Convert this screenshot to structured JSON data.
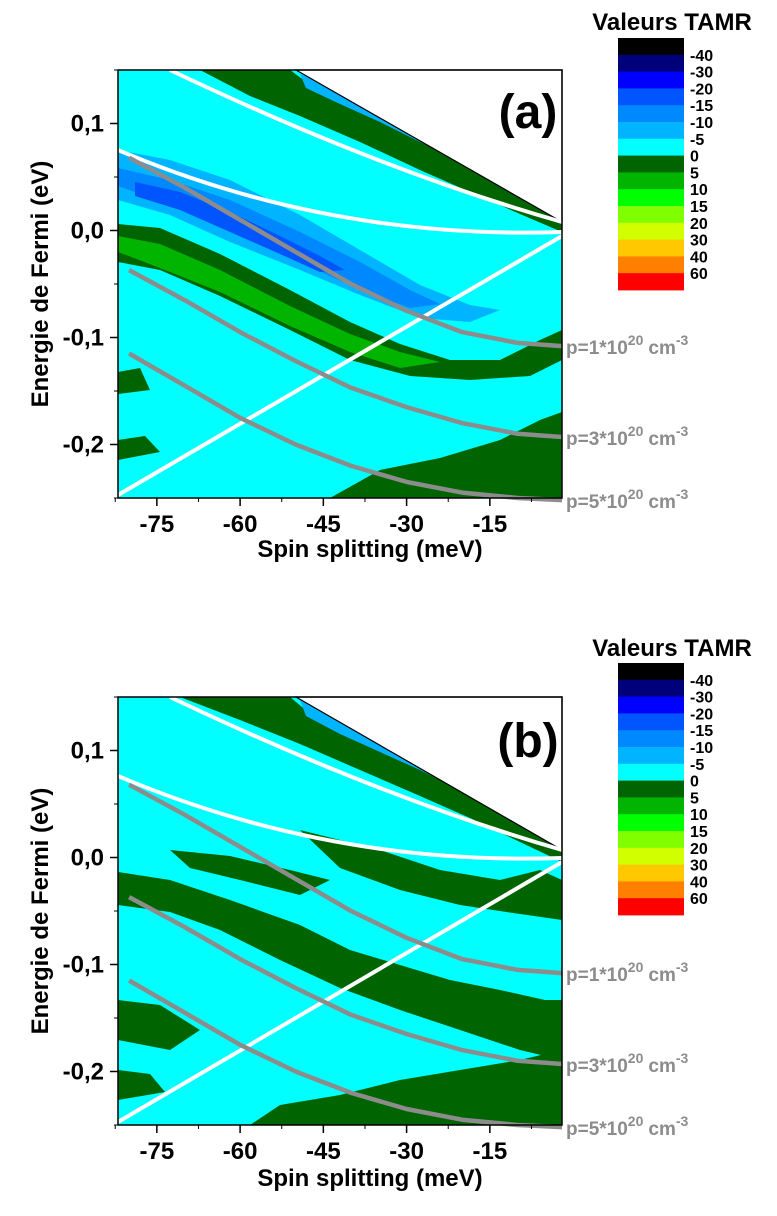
{
  "chart_data": [
    {
      "type": "heatmap",
      "panel_label": "(a)",
      "xlabel": "Spin splitting (meV)",
      "ylabel": "Energie de Fermi (eV)",
      "xlim": [
        -82,
        -2
      ],
      "ylim": [
        -0.25,
        0.15
      ],
      "x_ticks": [
        "-75",
        "-60",
        "-45",
        "-30",
        "-15"
      ],
      "y_ticks": [
        "0,1",
        "0,0",
        "-0,1",
        "-0,2"
      ],
      "colorbar": {
        "title": "Valeurs TAMR",
        "levels": [
          "-40",
          "-30",
          "-20",
          "-15",
          "-10",
          "-5",
          "0",
          "5",
          "10",
          "15",
          "20",
          "30",
          "40",
          "60"
        ],
        "colors": [
          "#000000",
          "#00007a",
          "#0000ff",
          "#0055ff",
          "#0088ff",
          "#00b4ff",
          "#00ffff",
          "#006400",
          "#00b400",
          "#00ff00",
          "#80ff00",
          "#d2ff00",
          "#ffc800",
          "#ff7f00",
          "#ff0000"
        ]
      },
      "density_curves": [
        {
          "label": "p=1*10",
          "exp": "20",
          "unit": "cm",
          "uexp": "-3",
          "x": [
            -80,
            -70,
            -60,
            -50,
            -40,
            -30,
            -20,
            -10,
            -2
          ],
          "y": [
            0.068,
            0.04,
            0.01,
            -0.02,
            -0.05,
            -0.075,
            -0.095,
            -0.105,
            -0.108
          ]
        },
        {
          "label": "p=3*10",
          "exp": "20",
          "unit": "cm",
          "uexp": "-3",
          "x": [
            -80,
            -70,
            -60,
            -50,
            -40,
            -30,
            -20,
            -10,
            -2
          ],
          "y": [
            -0.037,
            -0.065,
            -0.095,
            -0.122,
            -0.147,
            -0.165,
            -0.18,
            -0.19,
            -0.193
          ]
        },
        {
          "label": "p=5*10",
          "exp": "20",
          "unit": "cm",
          "uexp": "-3",
          "x": [
            -80,
            -70,
            -60,
            -50,
            -40,
            -30,
            -20,
            -10,
            -2
          ],
          "y": [
            -0.115,
            -0.145,
            -0.175,
            -0.2,
            -0.22,
            -0.235,
            -0.245,
            -0.25,
            -0.252
          ]
        }
      ]
    },
    {
      "type": "heatmap",
      "panel_label": "(b)",
      "xlabel": "Spin splitting (meV)",
      "ylabel": "Energie de Fermi (eV)",
      "xlim": [
        -82,
        -2
      ],
      "ylim": [
        -0.25,
        0.15
      ],
      "x_ticks": [
        "-75",
        "-60",
        "-45",
        "-30",
        "-15"
      ],
      "y_ticks": [
        "0,1",
        "0,0",
        "-0,1",
        "-0,2"
      ],
      "colorbar": {
        "title": "Valeurs TAMR",
        "levels": [
          "-40",
          "-30",
          "-20",
          "-15",
          "-10",
          "-5",
          "0",
          "5",
          "10",
          "15",
          "20",
          "30",
          "40",
          "60"
        ],
        "colors": [
          "#000000",
          "#00007a",
          "#0000ff",
          "#0055ff",
          "#0088ff",
          "#00b4ff",
          "#00ffff",
          "#006400",
          "#00b400",
          "#00ff00",
          "#80ff00",
          "#d2ff00",
          "#ffc800",
          "#ff7f00",
          "#ff0000"
        ]
      },
      "density_curves": [
        {
          "label": "p=1*10",
          "exp": "20",
          "unit": "cm",
          "uexp": "-3",
          "x": [
            -80,
            -70,
            -60,
            -50,
            -40,
            -30,
            -20,
            -10,
            -2
          ],
          "y": [
            0.068,
            0.04,
            0.01,
            -0.02,
            -0.05,
            -0.075,
            -0.095,
            -0.105,
            -0.108
          ]
        },
        {
          "label": "p=3*10",
          "exp": "20",
          "unit": "cm",
          "uexp": "-3",
          "x": [
            -80,
            -70,
            -60,
            -50,
            -40,
            -30,
            -20,
            -10,
            -2
          ],
          "y": [
            -0.037,
            -0.065,
            -0.095,
            -0.122,
            -0.147,
            -0.165,
            -0.18,
            -0.19,
            -0.193
          ]
        },
        {
          "label": "p=5*10",
          "exp": "20",
          "unit": "cm",
          "uexp": "-3",
          "x": [
            -80,
            -70,
            -60,
            -50,
            -40,
            -30,
            -20,
            -10,
            -2
          ],
          "y": [
            -0.115,
            -0.145,
            -0.175,
            -0.2,
            -0.22,
            -0.235,
            -0.245,
            -0.25,
            -0.252
          ]
        }
      ]
    }
  ]
}
